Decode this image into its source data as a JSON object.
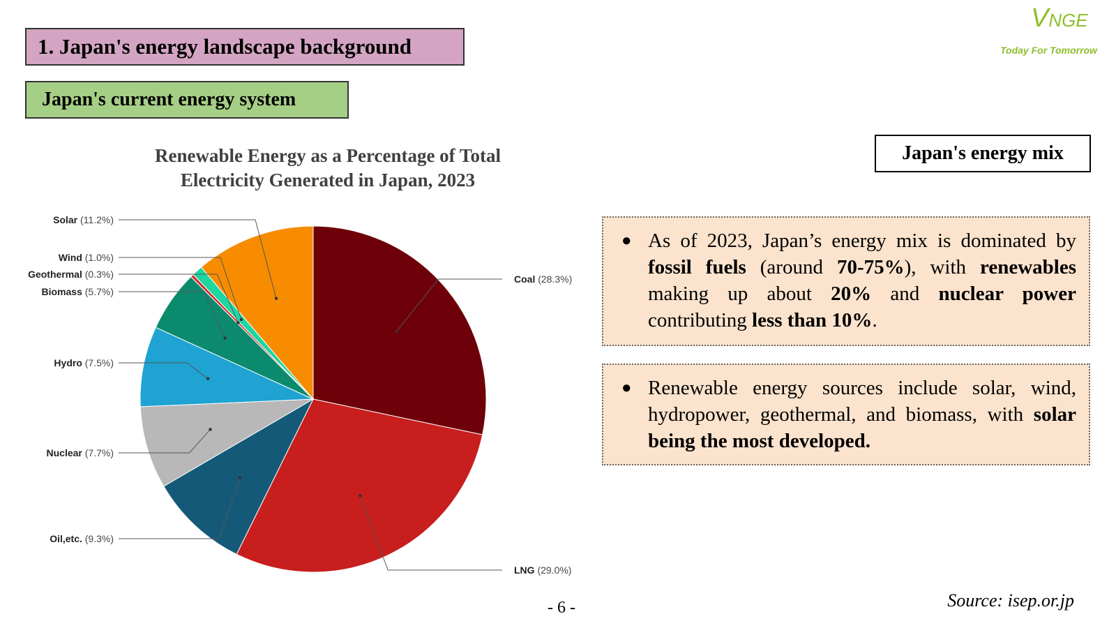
{
  "header": {
    "title": "1. Japan's energy landscape background",
    "subtitle": "Japan's current energy system"
  },
  "logo": {
    "mark_big": "V",
    "mark_small": "NGE",
    "tagline": "Today For Tomorrow"
  },
  "chart_data": {
    "type": "pie",
    "title": "Renewable Energy as a Percentage of Total Electricity Generated in Japan, 2023",
    "title_line1": "Renewable Energy as a Percentage of Total",
    "title_line2": "Electricity Generated in Japan, 2023",
    "slices": [
      {
        "name": "Coal",
        "value": 28.3,
        "label": "(28.3%)",
        "color": "#6e0009"
      },
      {
        "name": "LNG",
        "value": 29.0,
        "label": "(29.0%)",
        "color": "#c81e1e"
      },
      {
        "name": "Oil,etc.",
        "value": 9.3,
        "label": "(9.3%)",
        "color": "#145a78"
      },
      {
        "name": "Nuclear",
        "value": 7.7,
        "label": "(7.7%)",
        "color": "#b8b8b8"
      },
      {
        "name": "Hydro",
        "value": 7.5,
        "label": "(7.5%)",
        "color": "#1ea3d2"
      },
      {
        "name": "Biomass",
        "value": 5.7,
        "label": "(5.7%)",
        "color": "#0b8a6e"
      },
      {
        "name": "Geothermal",
        "value": 0.3,
        "label": "(0.3%)",
        "color": "#d43030"
      },
      {
        "name": "Wind",
        "value": 1.0,
        "label": "(1.0%)",
        "color": "#1ed6a0"
      },
      {
        "name": "Solar",
        "value": 11.2,
        "label": "(11.2%)",
        "color": "#f78c00"
      }
    ],
    "legend": "none"
  },
  "energy_mix": {
    "heading": "Japan's energy mix",
    "bullet": "●",
    "point1": {
      "t1": "As of 2023, Japan’s energy mix is dominated by ",
      "b1": "fossil fuels",
      "t2": " (around ",
      "b2": "70-75%",
      "t3": "), with ",
      "b3": "renewables",
      "t4": " making up about ",
      "b4": "20%",
      "t5": " and ",
      "b5": "nuclear power",
      "t6": " contributing ",
      "b6": "less than 10%",
      "t7": "."
    },
    "point2": {
      "t1": "Renewable energy sources include solar, wind, hydropower, geothermal, and biomass, with ",
      "b1": "solar being the most developed."
    }
  },
  "footer": {
    "page": "- 6 -",
    "source": "Source: isep.or.jp"
  }
}
